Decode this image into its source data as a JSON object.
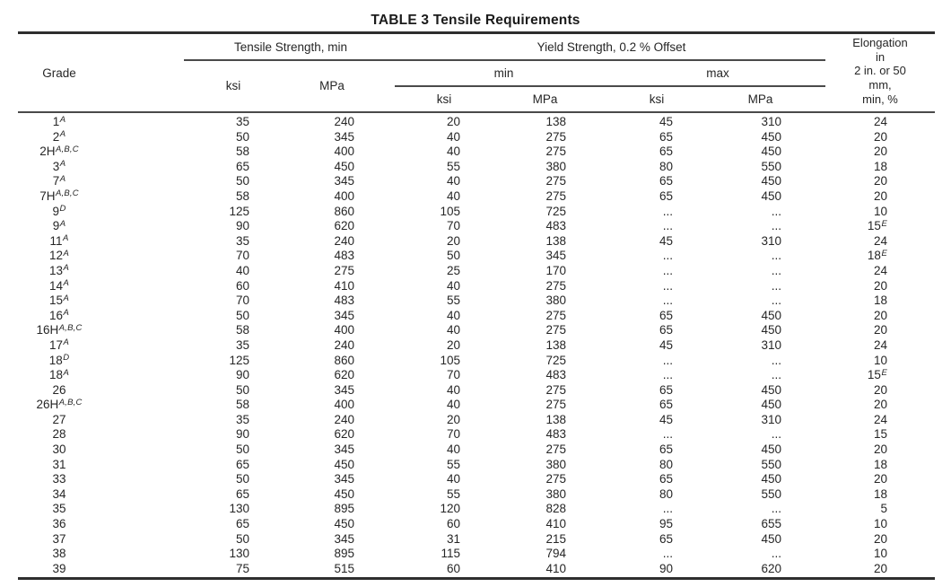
{
  "title": "TABLE 3 Tensile Requirements",
  "table": {
    "grade_header": "Grade",
    "groups": {
      "tensile": "Tensile Strength, min",
      "yield": "Yield Strength, 0.2 % Offset",
      "min": "min",
      "max": "max"
    },
    "units": {
      "ksi": "ksi",
      "mpa": "MPa"
    },
    "elongation_lines": [
      "Elongation",
      "in",
      "2 in. or 50",
      "mm,",
      "min, %"
    ],
    "rows": [
      {
        "grade": "1",
        "grade_sup": "A",
        "ts_ksi": "35",
        "ts_mpa": "240",
        "ymin_ksi": "20",
        "ymin_mpa": "138",
        "ymax_ksi": "45",
        "ymax_mpa": "310",
        "elong": "24",
        "elong_sup": ""
      },
      {
        "grade": "2",
        "grade_sup": "A",
        "ts_ksi": "50",
        "ts_mpa": "345",
        "ymin_ksi": "40",
        "ymin_mpa": "275",
        "ymax_ksi": "65",
        "ymax_mpa": "450",
        "elong": "20",
        "elong_sup": ""
      },
      {
        "grade": "2H",
        "grade_sup": "A,B,C",
        "ts_ksi": "58",
        "ts_mpa": "400",
        "ymin_ksi": "40",
        "ymin_mpa": "275",
        "ymax_ksi": "65",
        "ymax_mpa": "450",
        "elong": "20",
        "elong_sup": ""
      },
      {
        "grade": "3",
        "grade_sup": "A",
        "ts_ksi": "65",
        "ts_mpa": "450",
        "ymin_ksi": "55",
        "ymin_mpa": "380",
        "ymax_ksi": "80",
        "ymax_mpa": "550",
        "elong": "18",
        "elong_sup": ""
      },
      {
        "grade": "7",
        "grade_sup": "A",
        "ts_ksi": "50",
        "ts_mpa": "345",
        "ymin_ksi": "40",
        "ymin_mpa": "275",
        "ymax_ksi": "65",
        "ymax_mpa": "450",
        "elong": "20",
        "elong_sup": ""
      },
      {
        "grade": "7H",
        "grade_sup": "A,B,C",
        "ts_ksi": "58",
        "ts_mpa": "400",
        "ymin_ksi": "40",
        "ymin_mpa": "275",
        "ymax_ksi": "65",
        "ymax_mpa": "450",
        "elong": "20",
        "elong_sup": ""
      },
      {
        "grade": "9",
        "grade_sup": "D",
        "ts_ksi": "125",
        "ts_mpa": "860",
        "ymin_ksi": "105",
        "ymin_mpa": "725",
        "ymax_ksi": "...",
        "ymax_mpa": "...",
        "elong": "10",
        "elong_sup": ""
      },
      {
        "grade": "9",
        "grade_sup": "A",
        "ts_ksi": "90",
        "ts_mpa": "620",
        "ymin_ksi": "70",
        "ymin_mpa": "483",
        "ymax_ksi": "...",
        "ymax_mpa": "...",
        "elong": "15",
        "elong_sup": "E"
      },
      {
        "grade": "11",
        "grade_sup": "A",
        "ts_ksi": "35",
        "ts_mpa": "240",
        "ymin_ksi": "20",
        "ymin_mpa": "138",
        "ymax_ksi": "45",
        "ymax_mpa": "310",
        "elong": "24",
        "elong_sup": ""
      },
      {
        "grade": "12",
        "grade_sup": "A",
        "ts_ksi": "70",
        "ts_mpa": "483",
        "ymin_ksi": "50",
        "ymin_mpa": "345",
        "ymax_ksi": "...",
        "ymax_mpa": "...",
        "elong": "18",
        "elong_sup": "E"
      },
      {
        "grade": "13",
        "grade_sup": "A",
        "ts_ksi": "40",
        "ts_mpa": "275",
        "ymin_ksi": "25",
        "ymin_mpa": "170",
        "ymax_ksi": "...",
        "ymax_mpa": "...",
        "elong": "24",
        "elong_sup": ""
      },
      {
        "grade": "14",
        "grade_sup": "A",
        "ts_ksi": "60",
        "ts_mpa": "410",
        "ymin_ksi": "40",
        "ymin_mpa": "275",
        "ymax_ksi": "...",
        "ymax_mpa": "...",
        "elong": "20",
        "elong_sup": ""
      },
      {
        "grade": "15",
        "grade_sup": "A",
        "ts_ksi": "70",
        "ts_mpa": "483",
        "ymin_ksi": "55",
        "ymin_mpa": "380",
        "ymax_ksi": "...",
        "ymax_mpa": "...",
        "elong": "18",
        "elong_sup": ""
      },
      {
        "grade": "16",
        "grade_sup": "A",
        "ts_ksi": "50",
        "ts_mpa": "345",
        "ymin_ksi": "40",
        "ymin_mpa": "275",
        "ymax_ksi": "65",
        "ymax_mpa": "450",
        "elong": "20",
        "elong_sup": ""
      },
      {
        "grade": "16H",
        "grade_sup": "A,B,C",
        "ts_ksi": "58",
        "ts_mpa": "400",
        "ymin_ksi": "40",
        "ymin_mpa": "275",
        "ymax_ksi": "65",
        "ymax_mpa": "450",
        "elong": "20",
        "elong_sup": ""
      },
      {
        "grade": "17",
        "grade_sup": "A",
        "ts_ksi": "35",
        "ts_mpa": "240",
        "ymin_ksi": "20",
        "ymin_mpa": "138",
        "ymax_ksi": "45",
        "ymax_mpa": "310",
        "elong": "24",
        "elong_sup": ""
      },
      {
        "grade": "18",
        "grade_sup": "D",
        "ts_ksi": "125",
        "ts_mpa": "860",
        "ymin_ksi": "105",
        "ymin_mpa": "725",
        "ymax_ksi": "...",
        "ymax_mpa": "...",
        "elong": "10",
        "elong_sup": ""
      },
      {
        "grade": "18",
        "grade_sup": "A",
        "ts_ksi": "90",
        "ts_mpa": "620",
        "ymin_ksi": "70",
        "ymin_mpa": "483",
        "ymax_ksi": "...",
        "ymax_mpa": "...",
        "elong": "15",
        "elong_sup": "E"
      },
      {
        "grade": "26",
        "grade_sup": "",
        "ts_ksi": "50",
        "ts_mpa": "345",
        "ymin_ksi": "40",
        "ymin_mpa": "275",
        "ymax_ksi": "65",
        "ymax_mpa": "450",
        "elong": "20",
        "elong_sup": ""
      },
      {
        "grade": "26H",
        "grade_sup": "A,B,C",
        "ts_ksi": "58",
        "ts_mpa": "400",
        "ymin_ksi": "40",
        "ymin_mpa": "275",
        "ymax_ksi": "65",
        "ymax_mpa": "450",
        "elong": "20",
        "elong_sup": ""
      },
      {
        "grade": "27",
        "grade_sup": "",
        "ts_ksi": "35",
        "ts_mpa": "240",
        "ymin_ksi": "20",
        "ymin_mpa": "138",
        "ymax_ksi": "45",
        "ymax_mpa": "310",
        "elong": "24",
        "elong_sup": ""
      },
      {
        "grade": "28",
        "grade_sup": "",
        "ts_ksi": "90",
        "ts_mpa": "620",
        "ymin_ksi": "70",
        "ymin_mpa": "483",
        "ymax_ksi": "...",
        "ymax_mpa": "...",
        "elong": "15",
        "elong_sup": ""
      },
      {
        "grade": "30",
        "grade_sup": "",
        "ts_ksi": "50",
        "ts_mpa": "345",
        "ymin_ksi": "40",
        "ymin_mpa": "275",
        "ymax_ksi": "65",
        "ymax_mpa": "450",
        "elong": "20",
        "elong_sup": ""
      },
      {
        "grade": "31",
        "grade_sup": "",
        "ts_ksi": "65",
        "ts_mpa": "450",
        "ymin_ksi": "55",
        "ymin_mpa": "380",
        "ymax_ksi": "80",
        "ymax_mpa": "550",
        "elong": "18",
        "elong_sup": ""
      },
      {
        "grade": "33",
        "grade_sup": "",
        "ts_ksi": "50",
        "ts_mpa": "345",
        "ymin_ksi": "40",
        "ymin_mpa": "275",
        "ymax_ksi": "65",
        "ymax_mpa": "450",
        "elong": "20",
        "elong_sup": ""
      },
      {
        "grade": "34",
        "grade_sup": "",
        "ts_ksi": "65",
        "ts_mpa": "450",
        "ymin_ksi": "55",
        "ymin_mpa": "380",
        "ymax_ksi": "80",
        "ymax_mpa": "550",
        "elong": "18",
        "elong_sup": ""
      },
      {
        "grade": "35",
        "grade_sup": "",
        "ts_ksi": "130",
        "ts_mpa": "895",
        "ymin_ksi": "120",
        "ymin_mpa": "828",
        "ymax_ksi": "...",
        "ymax_mpa": "...",
        "elong": "5",
        "elong_sup": ""
      },
      {
        "grade": "36",
        "grade_sup": "",
        "ts_ksi": "65",
        "ts_mpa": "450",
        "ymin_ksi": "60",
        "ymin_mpa": "410",
        "ymax_ksi": "95",
        "ymax_mpa": "655",
        "elong": "10",
        "elong_sup": ""
      },
      {
        "grade": "37",
        "grade_sup": "",
        "ts_ksi": "50",
        "ts_mpa": "345",
        "ymin_ksi": "31",
        "ymin_mpa": "215",
        "ymax_ksi": "65",
        "ymax_mpa": "450",
        "elong": "20",
        "elong_sup": ""
      },
      {
        "grade": "38",
        "grade_sup": "",
        "ts_ksi": "130",
        "ts_mpa": "895",
        "ymin_ksi": "115",
        "ymin_mpa": "794",
        "ymax_ksi": "...",
        "ymax_mpa": "...",
        "elong": "10",
        "elong_sup": ""
      },
      {
        "grade": "39",
        "grade_sup": "",
        "ts_ksi": "75",
        "ts_mpa": "515",
        "ymin_ksi": "60",
        "ymin_mpa": "410",
        "ymax_ksi": "90",
        "ymax_mpa": "620",
        "elong": "20",
        "elong_sup": ""
      }
    ]
  }
}
